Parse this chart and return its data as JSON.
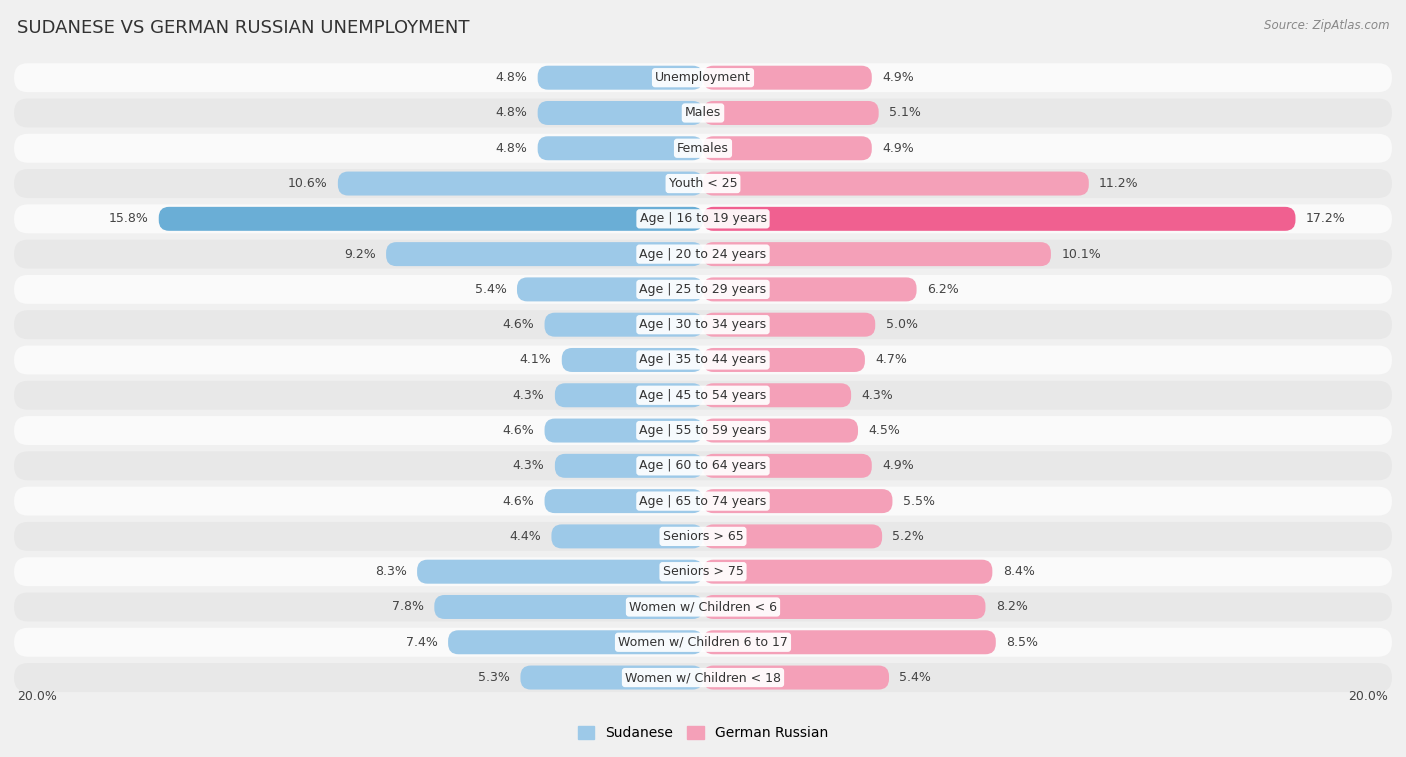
{
  "title": "SUDANESE VS GERMAN RUSSIAN UNEMPLOYMENT",
  "source": "Source: ZipAtlas.com",
  "categories": [
    "Unemployment",
    "Males",
    "Females",
    "Youth < 25",
    "Age | 16 to 19 years",
    "Age | 20 to 24 years",
    "Age | 25 to 29 years",
    "Age | 30 to 34 years",
    "Age | 35 to 44 years",
    "Age | 45 to 54 years",
    "Age | 55 to 59 years",
    "Age | 60 to 64 years",
    "Age | 65 to 74 years",
    "Seniors > 65",
    "Seniors > 75",
    "Women w/ Children < 6",
    "Women w/ Children 6 to 17",
    "Women w/ Children < 18"
  ],
  "sudanese": [
    4.8,
    4.8,
    4.8,
    10.6,
    15.8,
    9.2,
    5.4,
    4.6,
    4.1,
    4.3,
    4.6,
    4.3,
    4.6,
    4.4,
    8.3,
    7.8,
    7.4,
    5.3
  ],
  "german_russian": [
    4.9,
    5.1,
    4.9,
    11.2,
    17.2,
    10.1,
    6.2,
    5.0,
    4.7,
    4.3,
    4.5,
    4.9,
    5.5,
    5.2,
    8.4,
    8.2,
    8.5,
    5.4
  ],
  "sudanese_color": "#9dc9e8",
  "german_russian_color": "#f4a0b8",
  "sudanese_dark_color": "#6aaed6",
  "german_russian_dark_color": "#f06090",
  "bar_height": 0.68,
  "xlim": 20.0,
  "bg_color": "#f0f0f0",
  "row_color_light": "#fafafa",
  "row_color_dark": "#e8e8e8",
  "title_fontsize": 13,
  "label_fontsize": 9,
  "value_fontsize": 9,
  "legend_fontsize": 10,
  "source_fontsize": 8.5
}
